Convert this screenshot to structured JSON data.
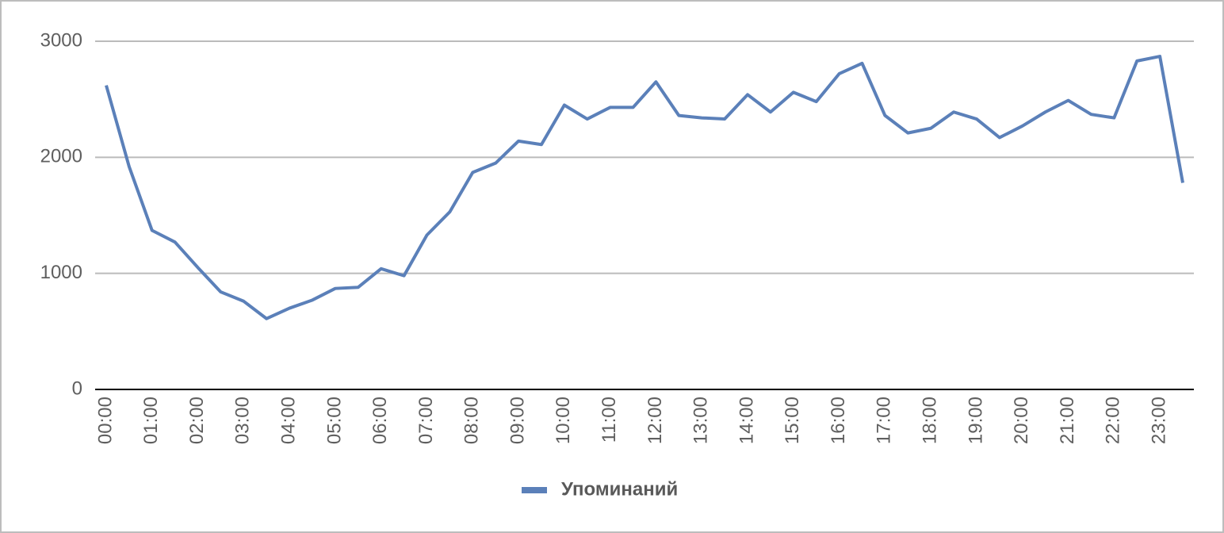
{
  "chart_data": {
    "type": "line",
    "categories": [
      "00:00",
      null,
      "01:00",
      null,
      "02:00",
      null,
      "03:00",
      null,
      "04:00",
      null,
      "05:00",
      null,
      "06:00",
      null,
      "07:00",
      null,
      "08:00",
      null,
      "09:00",
      null,
      "10:00",
      null,
      "11:00",
      null,
      "12:00",
      null,
      "13:00",
      null,
      "14:00",
      null,
      "15:00",
      null,
      "16:00",
      null,
      "17:00",
      null,
      "18:00",
      null,
      "19:00",
      null,
      "20:00",
      null,
      "21:00",
      null,
      "22:00",
      null,
      "23:00",
      null
    ],
    "series": [
      {
        "name": "Упоминаний",
        "color": "#5b80b9",
        "values": [
          2620,
          1920,
          1370,
          1270,
          1050,
          840,
          760,
          610,
          700,
          770,
          870,
          880,
          1040,
          980,
          1330,
          1530,
          1870,
          1950,
          2140,
          2110,
          2450,
          2330,
          2430,
          2430,
          2650,
          2360,
          2340,
          2330,
          2540,
          2390,
          2560,
          2480,
          2720,
          2810,
          2360,
          2210,
          2250,
          2390,
          2330,
          2170,
          2270,
          2390,
          2490,
          2370,
          2340,
          2830,
          2870,
          1780
        ]
      }
    ],
    "ylim": [
      0,
      3000
    ],
    "yticks": [
      0,
      1000,
      2000,
      3000
    ],
    "grid": true,
    "legend": "bottom"
  }
}
